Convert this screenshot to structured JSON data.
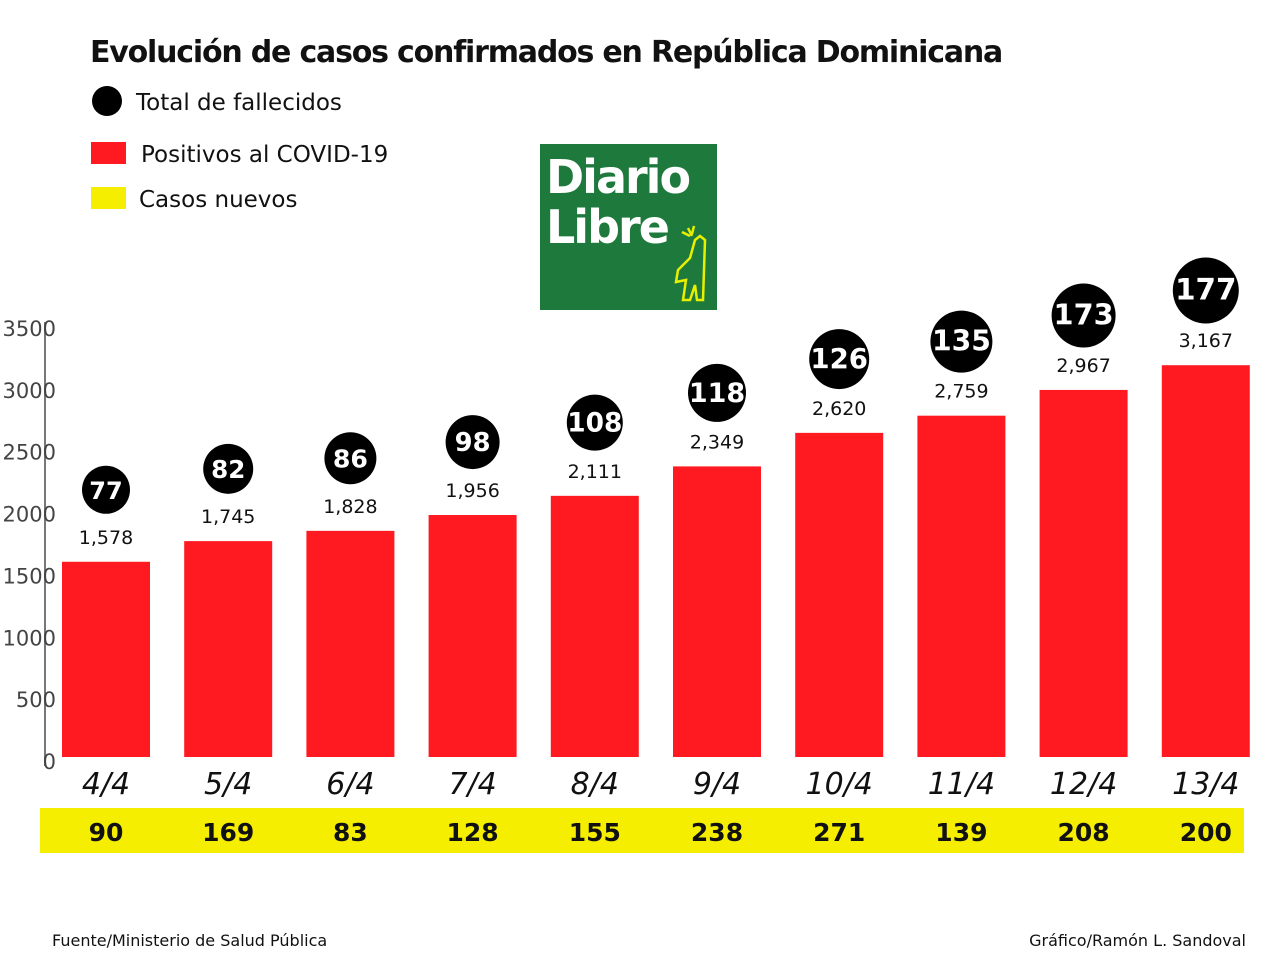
{
  "chart_data": {
    "type": "bar",
    "title": "Evolución de casos confirmados en República Dominicana",
    "categories": [
      "4/4",
      "5/4",
      "6/4",
      "7/4",
      "8/4",
      "9/4",
      "10/4",
      "11/4",
      "12/4",
      "13/4"
    ],
    "series": [
      {
        "name": "Positivos al COVID-19",
        "color": "#ff1a22",
        "values": [
          1578,
          1745,
          1828,
          1956,
          2111,
          2349,
          2620,
          2759,
          2967,
          3167
        ],
        "labels": [
          "1,578",
          "1,745",
          "1,828",
          "1,956",
          "2,111",
          "2,349",
          "2,620",
          "2,759",
          "2,967",
          "3,167"
        ]
      },
      {
        "name": "Total de fallecidos",
        "color": "#000000",
        "values": [
          77,
          82,
          86,
          98,
          108,
          118,
          126,
          135,
          173,
          177
        ]
      },
      {
        "name": "Casos nuevos",
        "color": "#f5ee00",
        "values": [
          90,
          169,
          83,
          128,
          155,
          238,
          271,
          139,
          208,
          200
        ]
      }
    ],
    "ylim": [
      0,
      3500
    ],
    "yticks": [
      "0",
      "500",
      "1000",
      "1500",
      "2000",
      "2500",
      "3000",
      "3500"
    ],
    "grid": false,
    "legend_position": "top-left",
    "xlabel": "",
    "ylabel": ""
  },
  "logo": {
    "line1": "Diario",
    "line2": "Libre",
    "bg": "#1e7a3c",
    "accent": "#e8f000"
  },
  "footer": {
    "source": "Fuente/Ministerio de Salud Pública",
    "credit": "Gráfico/Ramón L. Sandoval"
  }
}
